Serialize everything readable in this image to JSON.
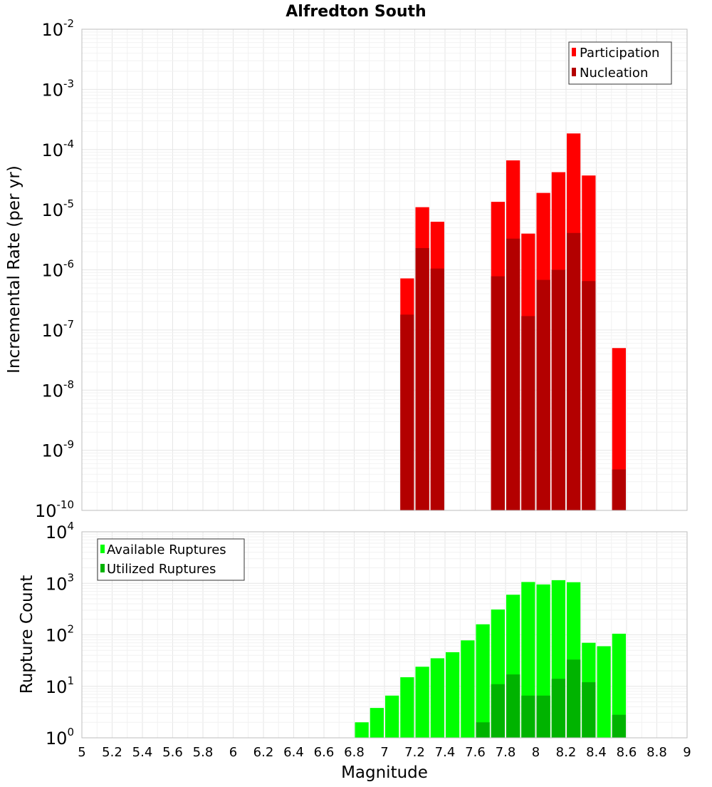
{
  "chart_data": [
    {
      "type": "bar",
      "title": "Alfredton South",
      "xlabel": "",
      "ylabel": "Incremental Rate (per yr)",
      "y_scale": "log",
      "ylim_exp": [
        -10,
        -2
      ],
      "xlim": [
        5,
        9
      ],
      "grid": true,
      "legend_position": "top-right",
      "series": [
        {
          "name": "Participation",
          "color": "#ff0000",
          "points": [
            [
              7.15,
              7.2e-07
            ],
            [
              7.25,
              1.1e-05
            ],
            [
              7.35,
              6.3e-06
            ],
            [
              7.75,
              1.35e-05
            ],
            [
              7.85,
              6.6e-05
            ],
            [
              7.95,
              4e-06
            ],
            [
              8.05,
              1.9e-05
            ],
            [
              8.15,
              4.2e-05
            ],
            [
              8.25,
              0.000185
            ],
            [
              8.35,
              3.7e-05
            ],
            [
              8.55,
              5e-08
            ]
          ]
        },
        {
          "name": "Nucleation",
          "color": "#b30000",
          "points": [
            [
              7.15,
              1.8e-07
            ],
            [
              7.25,
              2.3e-06
            ],
            [
              7.35,
              1.05e-06
            ],
            [
              7.75,
              7.8e-07
            ],
            [
              7.85,
              3.3e-06
            ],
            [
              7.95,
              1.7e-07
            ],
            [
              8.05,
              6.8e-07
            ],
            [
              8.15,
              1e-06
            ],
            [
              8.25,
              4.1e-06
            ],
            [
              8.35,
              6.5e-07
            ],
            [
              8.55,
              4.8e-10
            ]
          ]
        }
      ]
    },
    {
      "type": "bar",
      "title": "",
      "xlabel": "Magnitude",
      "ylabel": "Rupture Count",
      "y_scale": "log",
      "ylim_exp": [
        0,
        4
      ],
      "xlim": [
        5,
        9
      ],
      "x_ticks": [
        "5",
        "5.2",
        "5.4",
        "5.6",
        "5.8",
        "6",
        "6.2",
        "6.4",
        "6.6",
        "6.8",
        "7",
        "7.2",
        "7.4",
        "7.6",
        "7.8",
        "8",
        "8.2",
        "8.4",
        "8.6",
        "8.8",
        "9"
      ],
      "grid": true,
      "legend_position": "top-left",
      "series": [
        {
          "name": "Available Ruptures",
          "color": "#00ff00",
          "points": [
            [
              6.55,
              1
            ],
            [
              6.75,
              1
            ],
            [
              6.85,
              2
            ],
            [
              6.95,
              3.8
            ],
            [
              7.05,
              6.6
            ],
            [
              7.15,
              15
            ],
            [
              7.25,
              24
            ],
            [
              7.35,
              35
            ],
            [
              7.45,
              46
            ],
            [
              7.55,
              78
            ],
            [
              7.65,
              160
            ],
            [
              7.75,
              310
            ],
            [
              7.85,
              600
            ],
            [
              7.95,
              1060
            ],
            [
              8.05,
              950
            ],
            [
              8.15,
              1150
            ],
            [
              8.25,
              1050
            ],
            [
              8.35,
              70
            ],
            [
              8.45,
              60
            ],
            [
              8.55,
              105
            ]
          ]
        },
        {
          "name": "Utilized Ruptures",
          "color": "#00b300",
          "points": [
            [
              7.15,
              1
            ],
            [
              7.25,
              1
            ],
            [
              7.35,
              1
            ],
            [
              7.65,
              2
            ],
            [
              7.75,
              11
            ],
            [
              7.85,
              17
            ],
            [
              7.95,
              6.6
            ],
            [
              8.05,
              6.6
            ],
            [
              8.15,
              14
            ],
            [
              8.25,
              33
            ],
            [
              8.35,
              12
            ],
            [
              8.55,
              2.8
            ]
          ]
        }
      ]
    }
  ]
}
